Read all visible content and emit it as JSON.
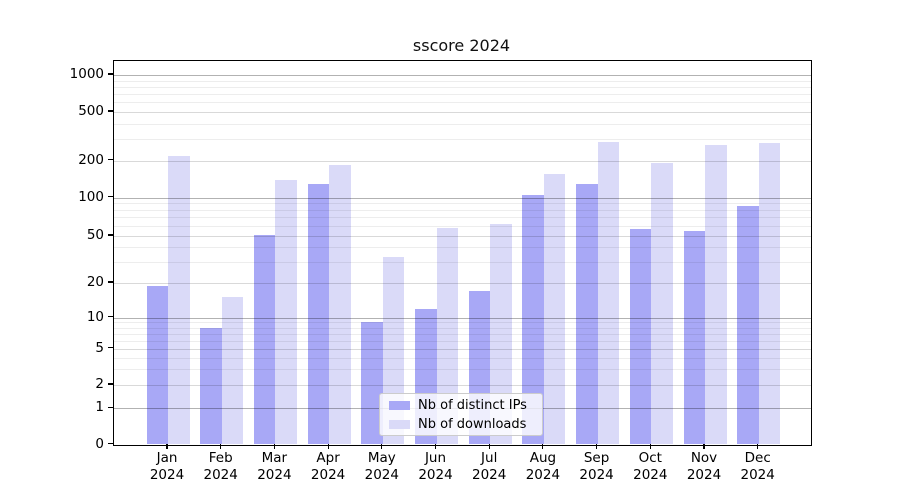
{
  "title": "sscore 2024",
  "chart_data": {
    "type": "bar",
    "categories": [
      "Jan 2024",
      "Feb 2024",
      "Mar 2024",
      "Apr 2024",
      "May 2024",
      "Jun 2024",
      "Jul 2024",
      "Aug 2024",
      "Sep 2024",
      "Oct 2024",
      "Nov 2024",
      "Dec 2024"
    ],
    "series": [
      {
        "name": "Nb of distinct IPs",
        "color": "#a8a8f6",
        "values": [
          19,
          8,
          51,
          128,
          9,
          12,
          17,
          105,
          128,
          57,
          55,
          86
        ]
      },
      {
        "name": "Nb of downloads",
        "color": "#dadaf8",
        "values": [
          220,
          15,
          140,
          185,
          33,
          58,
          62,
          155,
          285,
          190,
          270,
          280
        ]
      }
    ],
    "title": "sscore 2024",
    "xlabel": "",
    "ylabel": "",
    "yscale": "log-like (symlog), ticks 0,1,2,5,10,20,50,100,200,500,1000",
    "yticks": [
      0,
      1,
      2,
      5,
      10,
      20,
      50,
      100,
      200,
      500,
      1000
    ],
    "ylim": [
      0,
      1300
    ],
    "grid": "horizontal major + minor gridlines, drawn above bars",
    "legend_position": "lower center"
  }
}
